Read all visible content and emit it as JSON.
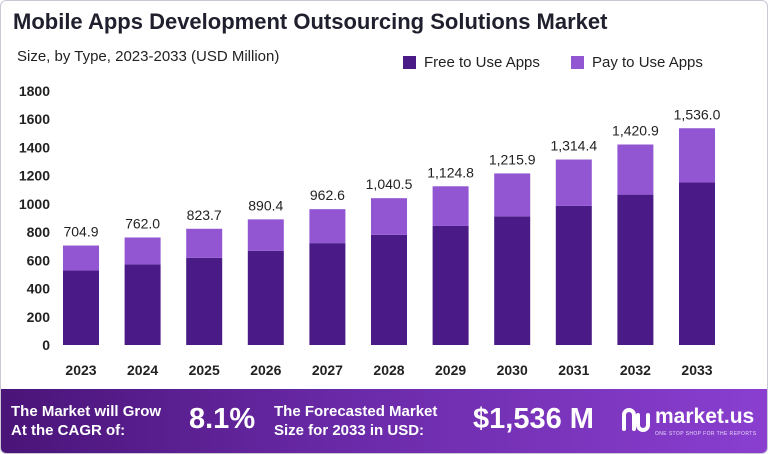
{
  "title": "Mobile Apps Development Outsourcing Solutions Market",
  "subtitle": "Size, by Type, 2023-2033 (USD Million)",
  "colors": {
    "free": "#4a1a86",
    "pay": "#9256d3",
    "footer_start": "#4a1478",
    "footer_end": "#8a3fd0"
  },
  "chart_data": {
    "type": "bar",
    "stacked": true,
    "categories": [
      "2023",
      "2024",
      "2025",
      "2026",
      "2027",
      "2028",
      "2029",
      "2030",
      "2031",
      "2032",
      "2033"
    ],
    "series": [
      {
        "name": "Free to Use Apps",
        "values": [
          528.7,
          571.5,
          617.8,
          667.8,
          721.9,
          780.4,
          843.6,
          911.9,
          985.8,
          1065.7,
          1152.0
        ]
      },
      {
        "name": "Pay to Use Apps",
        "values": [
          176.2,
          190.5,
          205.9,
          222.6,
          240.7,
          260.1,
          281.2,
          304.0,
          328.6,
          355.2,
          384.0
        ]
      }
    ],
    "totals": [
      "704.9",
      "762.0",
      "823.7",
      "890.4",
      "962.6",
      "1,040.5",
      "1,124.8",
      "1,215.9",
      "1,314.4",
      "1,420.9",
      "1,536.0"
    ],
    "y_ticks": [
      "0",
      "200",
      "400",
      "600",
      "800",
      "1000",
      "1200",
      "1400",
      "1600",
      "1800"
    ],
    "ylim": [
      0,
      1800
    ],
    "grid": false,
    "legend": "top-right"
  },
  "footer": {
    "cagr_label_1": "The Market will Grow",
    "cagr_label_2": "At the CAGR of:",
    "cagr_value": "8.1%",
    "forecast_label_1": "The Forecasted Market",
    "forecast_label_2": "Size for 2033 in USD:",
    "forecast_value": "$1,536 M",
    "logo_name": "market.us",
    "logo_tagline": "ONE STOP SHOP FOR THE REPORTS",
    "logo_icon": "market-us-logo-icon"
  }
}
